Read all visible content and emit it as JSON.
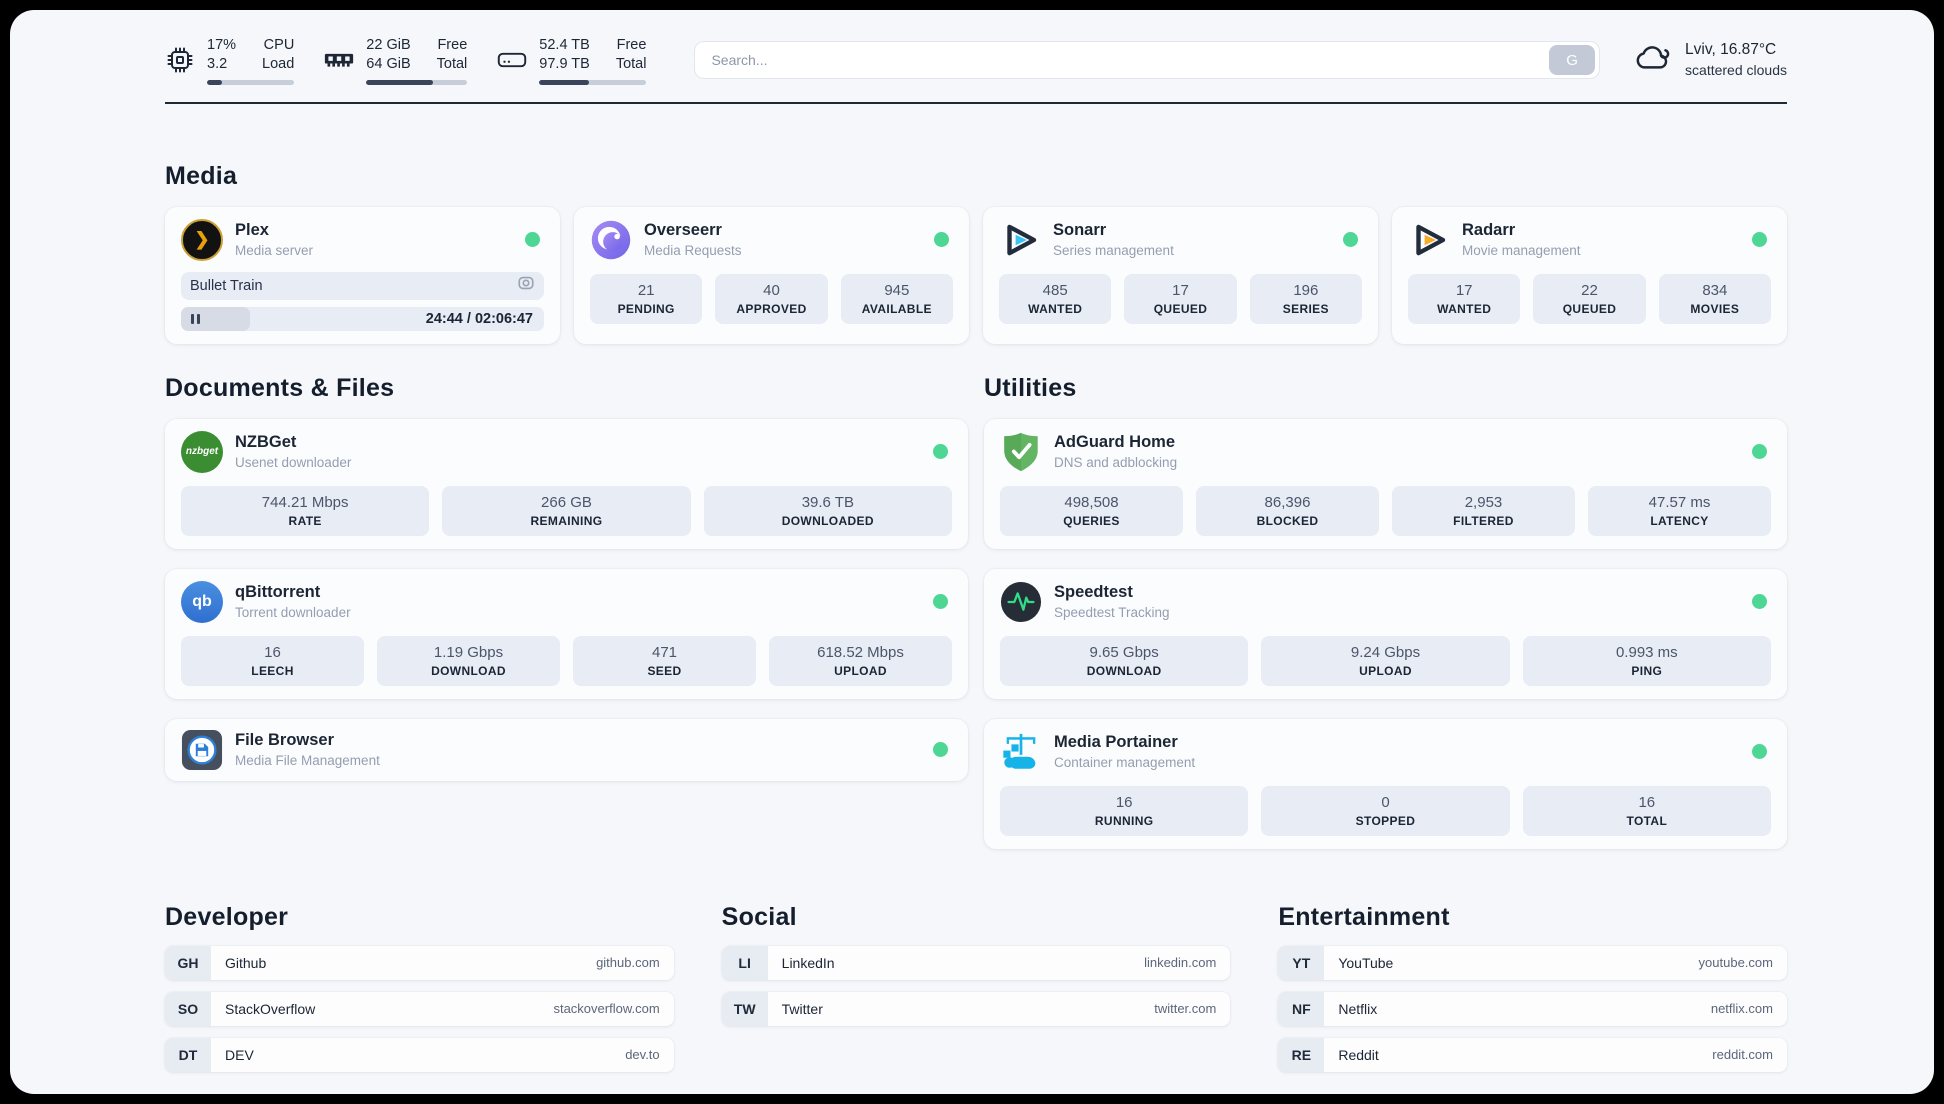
{
  "topbar": {
    "cpu": {
      "values": [
        "17%",
        "3.2"
      ],
      "labels": [
        "CPU",
        "Load"
      ],
      "progress_pct": 17
    },
    "ram": {
      "values": [
        "22 GiB",
        "64 GiB"
      ],
      "labels": [
        "Free",
        "Total"
      ],
      "progress_pct": 66
    },
    "disk": {
      "values": [
        "52.4 TB",
        "97.9 TB"
      ],
      "labels": [
        "Free",
        "Total"
      ],
      "progress_pct": 46
    },
    "search": {
      "placeholder": "Search...",
      "button_label": "G"
    },
    "weather": {
      "location_temp": "Lviv, 16.87°C",
      "condition": "scattered clouds"
    }
  },
  "media": {
    "heading": "Media",
    "plex": {
      "name": "Plex",
      "subtitle": "Media server",
      "now_playing": "Bullet Train",
      "time": "24:44 / 02:06:47",
      "progress_pct": 19
    },
    "overseerr": {
      "name": "Overseerr",
      "subtitle": "Media Requests",
      "stats": [
        {
          "value": "21",
          "label": "PENDING"
        },
        {
          "value": "40",
          "label": "APPROVED"
        },
        {
          "value": "945",
          "label": "AVAILABLE"
        }
      ]
    },
    "sonarr": {
      "name": "Sonarr",
      "subtitle": "Series management",
      "stats": [
        {
          "value": "485",
          "label": "WANTED"
        },
        {
          "value": "17",
          "label": "QUEUED"
        },
        {
          "value": "196",
          "label": "SERIES"
        }
      ]
    },
    "radarr": {
      "name": "Radarr",
      "subtitle": "Movie management",
      "stats": [
        {
          "value": "17",
          "label": "WANTED"
        },
        {
          "value": "22",
          "label": "QUEUED"
        },
        {
          "value": "834",
          "label": "MOVIES"
        }
      ]
    }
  },
  "documents": {
    "heading": "Documents & Files",
    "nzbget": {
      "name": "NZBGet",
      "subtitle": "Usenet downloader",
      "icon_text": "nzbget",
      "stats": [
        {
          "value": "744.21 Mbps",
          "label": "RATE"
        },
        {
          "value": "266 GB",
          "label": "REMAINING"
        },
        {
          "value": "39.6 TB",
          "label": "DOWNLOADED"
        }
      ]
    },
    "qbittorrent": {
      "name": "qBittorrent",
      "subtitle": "Torrent downloader",
      "icon_text": "qb",
      "stats": [
        {
          "value": "16",
          "label": "LEECH"
        },
        {
          "value": "1.19 Gbps",
          "label": "DOWNLOAD"
        },
        {
          "value": "471",
          "label": "SEED"
        },
        {
          "value": "618.52 Mbps",
          "label": "UPLOAD"
        }
      ]
    },
    "filebrowser": {
      "name": "File Browser",
      "subtitle": "Media File Management"
    }
  },
  "utilities": {
    "heading": "Utilities",
    "adguard": {
      "name": "AdGuard Home",
      "subtitle": "DNS and adblocking",
      "stats": [
        {
          "value": "498,508",
          "label": "QUERIES"
        },
        {
          "value": "86,396",
          "label": "BLOCKED"
        },
        {
          "value": "2,953",
          "label": "FILTERED"
        },
        {
          "value": "47.57 ms",
          "label": "LATENCY"
        }
      ]
    },
    "speedtest": {
      "name": "Speedtest",
      "subtitle": "Speedtest Tracking",
      "stats": [
        {
          "value": "9.65 Gbps",
          "label": "DOWNLOAD"
        },
        {
          "value": "9.24 Gbps",
          "label": "UPLOAD"
        },
        {
          "value": "0.993 ms",
          "label": "PING"
        }
      ]
    },
    "portainer": {
      "name": "Media Portainer",
      "subtitle": "Container management",
      "stats": [
        {
          "value": "16",
          "label": "RUNNING"
        },
        {
          "value": "0",
          "label": "STOPPED"
        },
        {
          "value": "16",
          "label": "TOTAL"
        }
      ]
    }
  },
  "links": {
    "developer": {
      "heading": "Developer",
      "items": [
        {
          "badge": "GH",
          "name": "Github",
          "url": "github.com"
        },
        {
          "badge": "SO",
          "name": "StackOverflow",
          "url": "stackoverflow.com"
        },
        {
          "badge": "DT",
          "name": "DEV",
          "url": "dev.to"
        }
      ]
    },
    "social": {
      "heading": "Social",
      "items": [
        {
          "badge": "LI",
          "name": "LinkedIn",
          "url": "linkedin.com"
        },
        {
          "badge": "TW",
          "name": "Twitter",
          "url": "twitter.com"
        }
      ]
    },
    "entertainment": {
      "heading": "Entertainment",
      "items": [
        {
          "badge": "YT",
          "name": "YouTube",
          "url": "youtube.com"
        },
        {
          "badge": "NF",
          "name": "Netflix",
          "url": "netflix.com"
        },
        {
          "badge": "RE",
          "name": "Reddit",
          "url": "reddit.com"
        }
      ]
    }
  },
  "colors": {
    "status_online": "#4ed794",
    "progress_fill": "#3a455b",
    "accent_dark": "#1b2534"
  }
}
